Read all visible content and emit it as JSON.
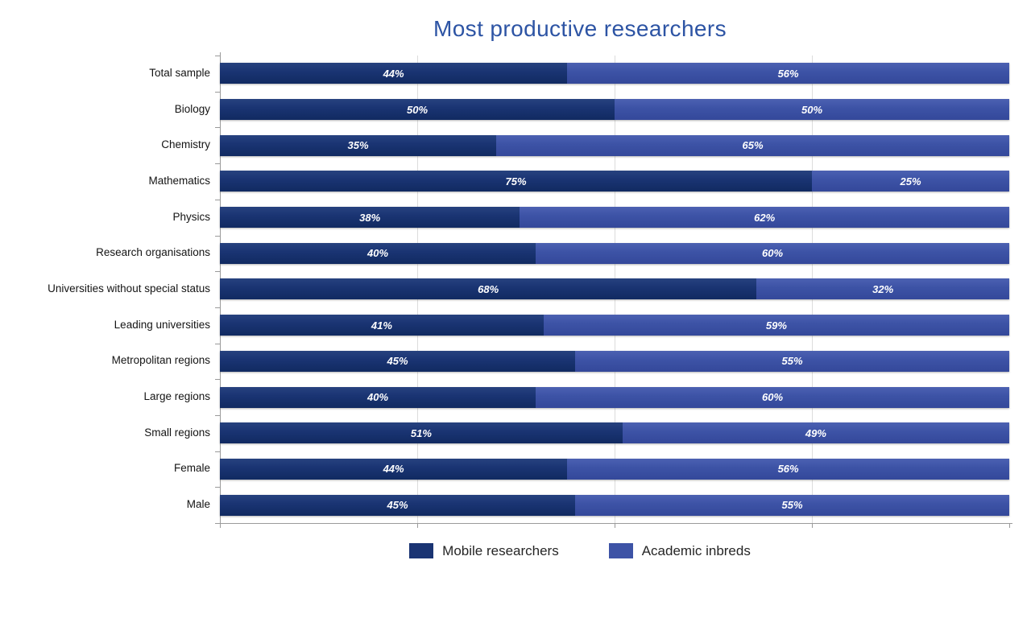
{
  "chart": {
    "title": "Most productive researchers",
    "colors": {
      "mobile": "#1a3473",
      "inbred": "#3d53a6",
      "title": "#2d54a4",
      "axis": "#9a9a9a",
      "gridline": "#dcdcdc",
      "value_label": "#ffffff"
    },
    "legend": [
      {
        "key": "mobile",
        "label": "Mobile researchers"
      },
      {
        "key": "inbred",
        "label": "Academic inbreds"
      }
    ]
  },
  "chart_data": {
    "type": "bar",
    "orientation": "horizontal",
    "stacked": true,
    "title": "Most productive researchers",
    "xlabel": "",
    "ylabel": "",
    "xlim": [
      0,
      100
    ],
    "x_ticks": [
      0,
      25,
      50,
      75,
      100
    ],
    "gridlines": [
      25,
      50,
      75
    ],
    "grid": true,
    "legend_position": "bottom",
    "value_label_format": "percent",
    "categories": [
      "Total sample",
      "Biology",
      "Chemistry",
      "Mathematics",
      "Physics",
      "Research organisations",
      "Universities without special status",
      "Leading universities",
      "Metropolitan regions",
      "Large regions",
      "Small regions",
      "Female",
      "Male"
    ],
    "series": [
      {
        "name": "Mobile researchers",
        "values": [
          44,
          50,
          35,
          75,
          38,
          40,
          68,
          41,
          45,
          40,
          51,
          44,
          45
        ]
      },
      {
        "name": "Academic inbreds",
        "values": [
          56,
          50,
          65,
          25,
          62,
          60,
          32,
          59,
          55,
          60,
          49,
          56,
          55
        ]
      }
    ]
  }
}
